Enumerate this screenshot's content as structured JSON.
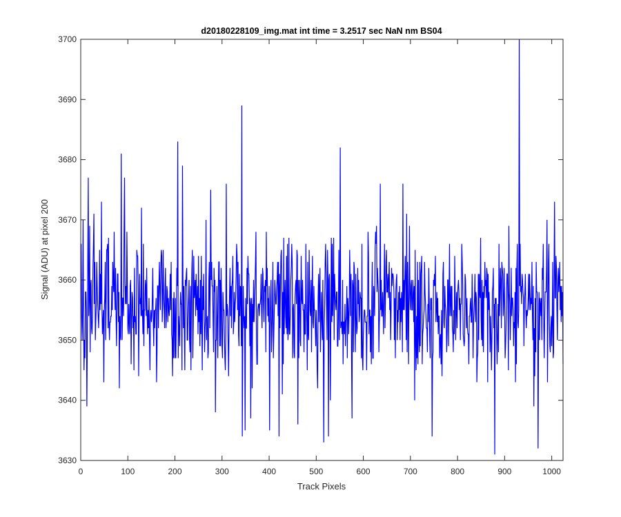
{
  "chart_data": {
    "type": "line",
    "title": "d20180228109_img.mat int time = 3.2517 sec  NaN nm BS04",
    "xlabel": "Track Pixels",
    "ylabel": "Signal (ADU) at pixel 200",
    "xlim": [
      0,
      1024
    ],
    "ylim": [
      3630,
      3700
    ],
    "xticks": [
      0,
      100,
      200,
      300,
      400,
      500,
      600,
      700,
      800,
      900,
      1000
    ],
    "yticks": [
      3630,
      3640,
      3650,
      3660,
      3670,
      3680,
      3690,
      3700
    ],
    "grid": false,
    "n_points": 1024,
    "series": [
      {
        "color": "#0000ff",
        "mean": 3656,
        "std": 5.5,
        "peaks": [
          {
            "x": 4,
            "y": 3670
          },
          {
            "x": 8,
            "y": 3647
          },
          {
            "x": 12,
            "y": 3639
          },
          {
            "x": 15,
            "y": 3677
          },
          {
            "x": 27,
            "y": 3671
          },
          {
            "x": 43,
            "y": 3673
          },
          {
            "x": 48,
            "y": 3643
          },
          {
            "x": 85,
            "y": 3681
          },
          {
            "x": 92,
            "y": 3677
          },
          {
            "x": 128,
            "y": 3672
          },
          {
            "x": 160,
            "y": 3643
          },
          {
            "x": 205,
            "y": 3683
          },
          {
            "x": 215,
            "y": 3679
          },
          {
            "x": 257,
            "y": 3645
          },
          {
            "x": 275,
            "y": 3675
          },
          {
            "x": 285,
            "y": 3638
          },
          {
            "x": 308,
            "y": 3676
          },
          {
            "x": 341,
            "y": 3689
          },
          {
            "x": 342,
            "y": 3634
          },
          {
            "x": 348,
            "y": 3635
          },
          {
            "x": 360,
            "y": 3637
          },
          {
            "x": 400,
            "y": 3635
          },
          {
            "x": 420,
            "y": 3634
          },
          {
            "x": 460,
            "y": 3636
          },
          {
            "x": 515,
            "y": 3633
          },
          {
            "x": 525,
            "y": 3634
          },
          {
            "x": 550,
            "y": 3682
          },
          {
            "x": 575,
            "y": 3637
          },
          {
            "x": 635,
            "y": 3676
          },
          {
            "x": 683,
            "y": 3676
          },
          {
            "x": 745,
            "y": 3634
          },
          {
            "x": 878,
            "y": 3631
          },
          {
            "x": 930,
            "y": 3700
          },
          {
            "x": 970,
            "y": 3632
          },
          {
            "x": 1005,
            "y": 3673
          }
        ]
      }
    ]
  }
}
